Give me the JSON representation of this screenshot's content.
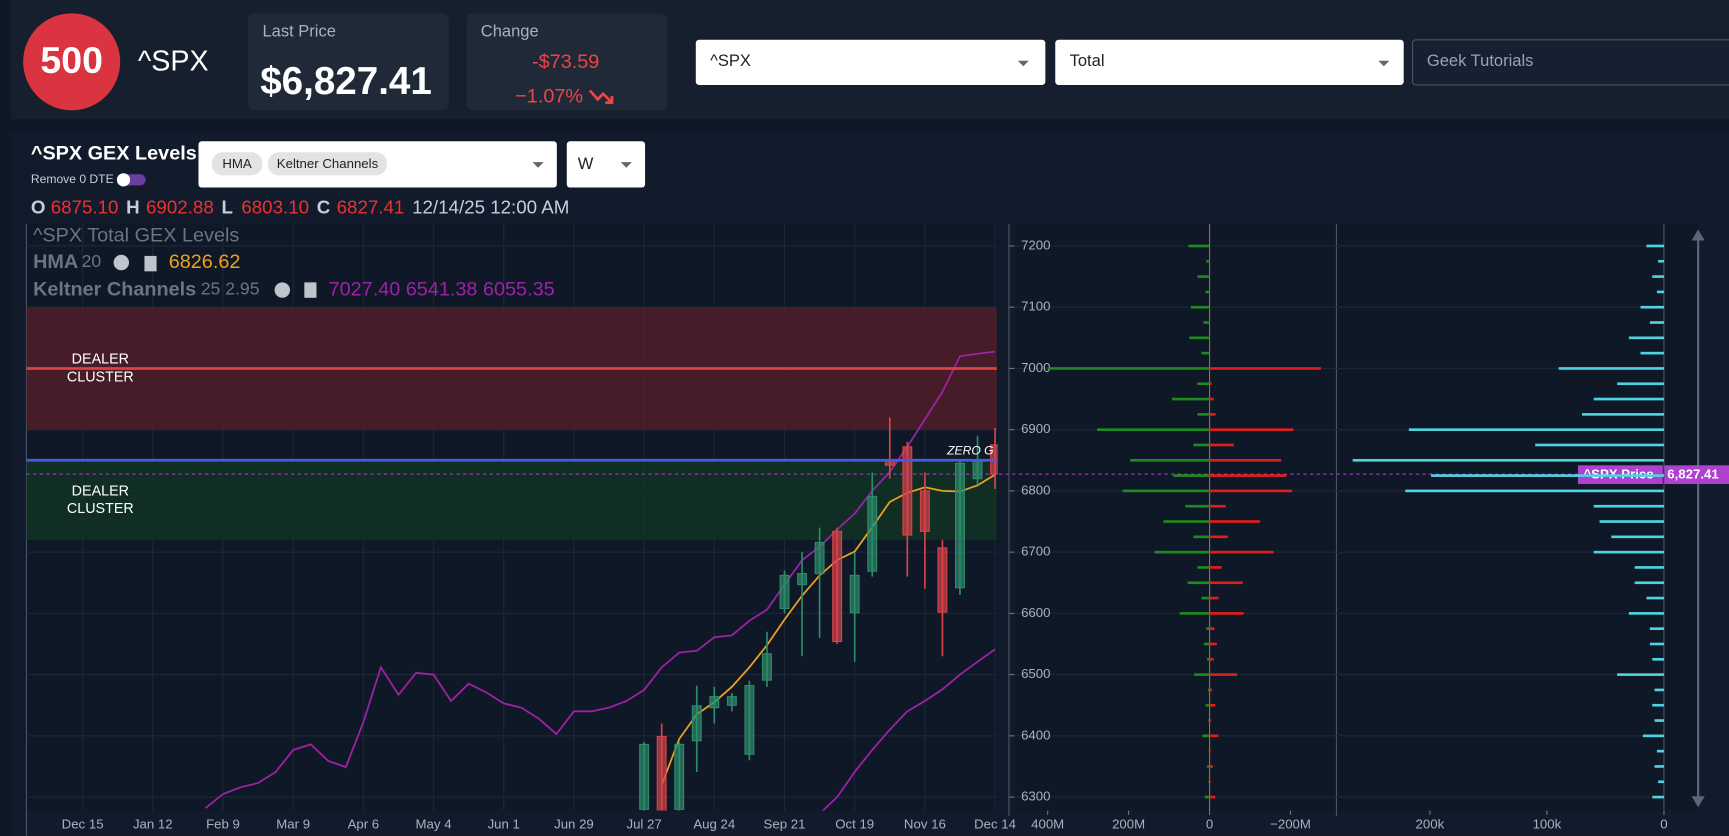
{
  "header": {
    "logo": "500",
    "symbol": "^SPX",
    "last_price": {
      "label": "Last Price",
      "value": "$6,827.41"
    },
    "change": {
      "label": "Change",
      "amount": "-$73.59",
      "percent": "−1.07%"
    },
    "symbol_select": "^SPX",
    "type_select": "Total",
    "search": "Geek Tutorials"
  },
  "panel": {
    "title": "^SPX GEX Levels",
    "toggle_label": "Remove 0 DTE",
    "indicators": [
      "HMA",
      "Keltner Channels"
    ],
    "interval": "W",
    "ohlc": [
      {
        "key": "O",
        "value": "6875.10"
      },
      {
        "key": "H",
        "value": "6902.88"
      },
      {
        "key": "L",
        "value": "6803.10"
      },
      {
        "key": "C",
        "value": "6827.41"
      }
    ],
    "date": "12/14/25 12:00 AM",
    "legend": {
      "title": "^SPX Total GEX Levels",
      "hma": {
        "name": "HMA",
        "params": "20",
        "value": "6826.62"
      },
      "keltner": {
        "name": "Keltner Channels",
        "params": "25 2.95",
        "values": "7027.40 6541.38 6055.35"
      }
    }
  },
  "chart_data": [
    {
      "type": "candlestick",
      "ylim": [
        6278,
        7236
      ],
      "yticks": [
        6300,
        6400,
        6500,
        6600,
        6700,
        6800,
        6900,
        7000,
        7100,
        7200
      ],
      "xlim": [
        -3.2,
        52.1
      ],
      "xticks": [
        {
          "value": 0,
          "label": "Dec 15"
        },
        {
          "value": 4,
          "label": "Jan 12"
        },
        {
          "value": 8,
          "label": "Feb 9"
        },
        {
          "value": 12,
          "label": "Mar 9"
        },
        {
          "value": 16,
          "label": "Apr 6"
        },
        {
          "value": 20,
          "label": "May 4"
        },
        {
          "value": 24,
          "label": "Jun 1"
        },
        {
          "value": 28,
          "label": "Jun 29"
        },
        {
          "value": 32,
          "label": "Jul 27"
        },
        {
          "value": 36,
          "label": "Aug 24"
        },
        {
          "value": 40,
          "label": "Sep 21"
        },
        {
          "value": 44,
          "label": "Oct 19"
        },
        {
          "value": 48,
          "label": "Nov 16"
        },
        {
          "value": 52,
          "label": "Dec 14"
        }
      ],
      "up_color": "#2e8b6a",
      "down_color": "#d9434a",
      "candles": {
        "x": [
          32,
          33,
          34,
          35,
          36,
          37,
          38,
          39,
          40,
          41,
          42,
          43,
          44,
          45,
          46,
          47,
          48,
          49,
          50,
          51,
          52
        ],
        "open": [
          6280,
          6399,
          6280,
          6392,
          6446,
          6450,
          6370,
          6491,
          6608,
          6647,
          6665,
          6734,
          6601,
          6669,
          6851,
          6872,
          6800,
          6707,
          6642,
          6820,
          6875.1
        ],
        "high": [
          6390,
          6420,
          6390,
          6482,
          6480,
          6470,
          6490,
          6570,
          6670,
          6700,
          6740,
          6740,
          6700,
          6830,
          6920,
          6880,
          6830,
          6720,
          6850,
          6890,
          6902.88
        ],
        "low": [
          6270,
          6260,
          6270,
          6341,
          6420,
          6440,
          6360,
          6480,
          6600,
          6530,
          6560,
          6550,
          6521,
          6660,
          6820,
          6660,
          6640,
          6530,
          6630,
          6810,
          6803.1
        ],
        "close": [
          6386,
          6270,
          6386,
          6449,
          6464,
          6464,
          6482,
          6534,
          6662,
          6665,
          6716,
          6554,
          6662,
          6791,
          6842,
          6728,
          6734,
          6602,
          6845,
          6849,
          6827.41
        ]
      },
      "lines": [
        {
          "name": "Keltner upper",
          "color": "#a020a8",
          "x": [
            7,
            8,
            9,
            10,
            11,
            12,
            13,
            14,
            15,
            16,
            17,
            18,
            19,
            20,
            21,
            22,
            23,
            24,
            25,
            26,
            27,
            28,
            29,
            30,
            31,
            32,
            33,
            34,
            35,
            36,
            37,
            38,
            39,
            40,
            41,
            42,
            43,
            44,
            45,
            46,
            47,
            48,
            49,
            50,
            51,
            52
          ],
          "values": [
            6282,
            6305,
            6316,
            6323,
            6341,
            6377,
            6386,
            6359,
            6349,
            6422,
            6512,
            6467,
            6503,
            6500,
            6457,
            6485,
            6471,
            6453,
            6446,
            6428,
            6403,
            6440,
            6440,
            6446,
            6457,
            6475,
            6512,
            6536,
            6539,
            6561,
            6564,
            6588,
            6606,
            6647,
            6687,
            6709,
            6737,
            6763,
            6800,
            6831,
            6872,
            6917,
            6962,
            7020,
            7024,
            7027.4
          ]
        },
        {
          "name": "Keltner middle",
          "color": "#a020a8",
          "x": [
            42,
            43,
            44,
            45,
            46,
            47,
            48,
            49,
            50,
            51,
            52
          ],
          "values": [
            6273,
            6300,
            6341,
            6377,
            6410,
            6440,
            6457,
            6476,
            6500,
            6521,
            6541.38
          ]
        },
        {
          "name": "HMA",
          "color": "#f0a020",
          "x": [
            33,
            34,
            35,
            36,
            37,
            38,
            39,
            40,
            41,
            42,
            43,
            44,
            45,
            46,
            47,
            48,
            49,
            50,
            51,
            52
          ],
          "values": [
            6320,
            6395,
            6435,
            6455,
            6480,
            6512,
            6548,
            6590,
            6629,
            6662,
            6687,
            6701,
            6741,
            6782,
            6797,
            6806,
            6800,
            6799,
            6809,
            6826.62
          ]
        }
      ],
      "zones": [
        {
          "label": "DEALER CLUSTER",
          "from": 6900,
          "to": 7100,
          "color": "#5a1e2a"
        },
        {
          "label": "DEALER CLUSTER",
          "from": 6720,
          "to": 6850,
          "color": "#123524"
        }
      ],
      "levels": [
        {
          "value": 7000,
          "color": "#e04040"
        },
        {
          "value": 6850,
          "color": "#4a5ae8",
          "label": "ZERO G"
        }
      ],
      "price": {
        "value": 6827.41,
        "label": "6,827.41",
        "name": "^SPX Price",
        "color": "#b040d0"
      }
    },
    {
      "type": "hbar",
      "ylim": [
        6278,
        7236
      ],
      "xlim": [
        482,
        -308
      ],
      "xticks": [
        {
          "value": 400,
          "label": "400M"
        },
        {
          "value": 200,
          "label": "200M"
        },
        0,
        {
          "value": -200,
          "label": "−200M"
        }
      ],
      "categories": [
        6300,
        6325,
        6350,
        6375,
        6400,
        6425,
        6450,
        6475,
        6500,
        6525,
        6550,
        6575,
        6600,
        6625,
        6650,
        6675,
        6700,
        6725,
        6750,
        6775,
        6800,
        6825,
        6850,
        6875,
        6900,
        6925,
        6950,
        6975,
        7000,
        7025,
        7050,
        7075,
        7100,
        7125,
        7150,
        7175,
        7200
      ],
      "series": [
        {
          "color": "#1f8a1f",
          "values": [
            12,
            3,
            6,
            2,
            18,
            3,
            10,
            4,
            38,
            6,
            14,
            8,
            74,
            20,
            54,
            30,
            136,
            40,
            114,
            60,
            215,
            90,
            196,
            40,
            278,
            30,
            93,
            30,
            400,
            20,
            50,
            15,
            46,
            10,
            30,
            8,
            52
          ]
        },
        {
          "color": "#e01e1e",
          "values": [
            -14,
            -3,
            -8,
            -3,
            -22,
            -4,
            -14,
            -6,
            -68,
            -10,
            -18,
            -12,
            -84,
            -22,
            -82,
            -30,
            -158,
            -45,
            -125,
            -40,
            -204,
            -190,
            -177,
            -60,
            -207,
            -15,
            -10,
            -5,
            -275,
            0,
            0,
            0,
            0,
            0,
            0,
            0,
            0
          ]
        }
      ]
    },
    {
      "type": "hbar",
      "ylim": [
        6278,
        7236
      ],
      "xlim": [
        277,
        0
      ],
      "xticks": [
        {
          "value": 200,
          "label": "200k"
        },
        {
          "value": 100,
          "label": "100k"
        },
        0
      ],
      "categories": [
        6300,
        6325,
        6350,
        6375,
        6400,
        6425,
        6450,
        6475,
        6500,
        6525,
        6550,
        6575,
        6600,
        6625,
        6650,
        6675,
        6700,
        6725,
        6750,
        6775,
        6800,
        6825,
        6850,
        6875,
        6900,
        6925,
        6950,
        6975,
        7000,
        7025,
        7050,
        7075,
        7100,
        7125,
        7150,
        7175,
        7200
      ],
      "series": [
        {
          "color": "#4fd3e0",
          "values": [
            10,
            5,
            8,
            6,
            18,
            8,
            10,
            8,
            40,
            10,
            12,
            12,
            30,
            15,
            25,
            25,
            60,
            45,
            55,
            60,
            221,
            199,
            266,
            110,
            218,
            70,
            60,
            40,
            90,
            20,
            30,
            12,
            20,
            6,
            10,
            5,
            15
          ]
        }
      ]
    }
  ]
}
